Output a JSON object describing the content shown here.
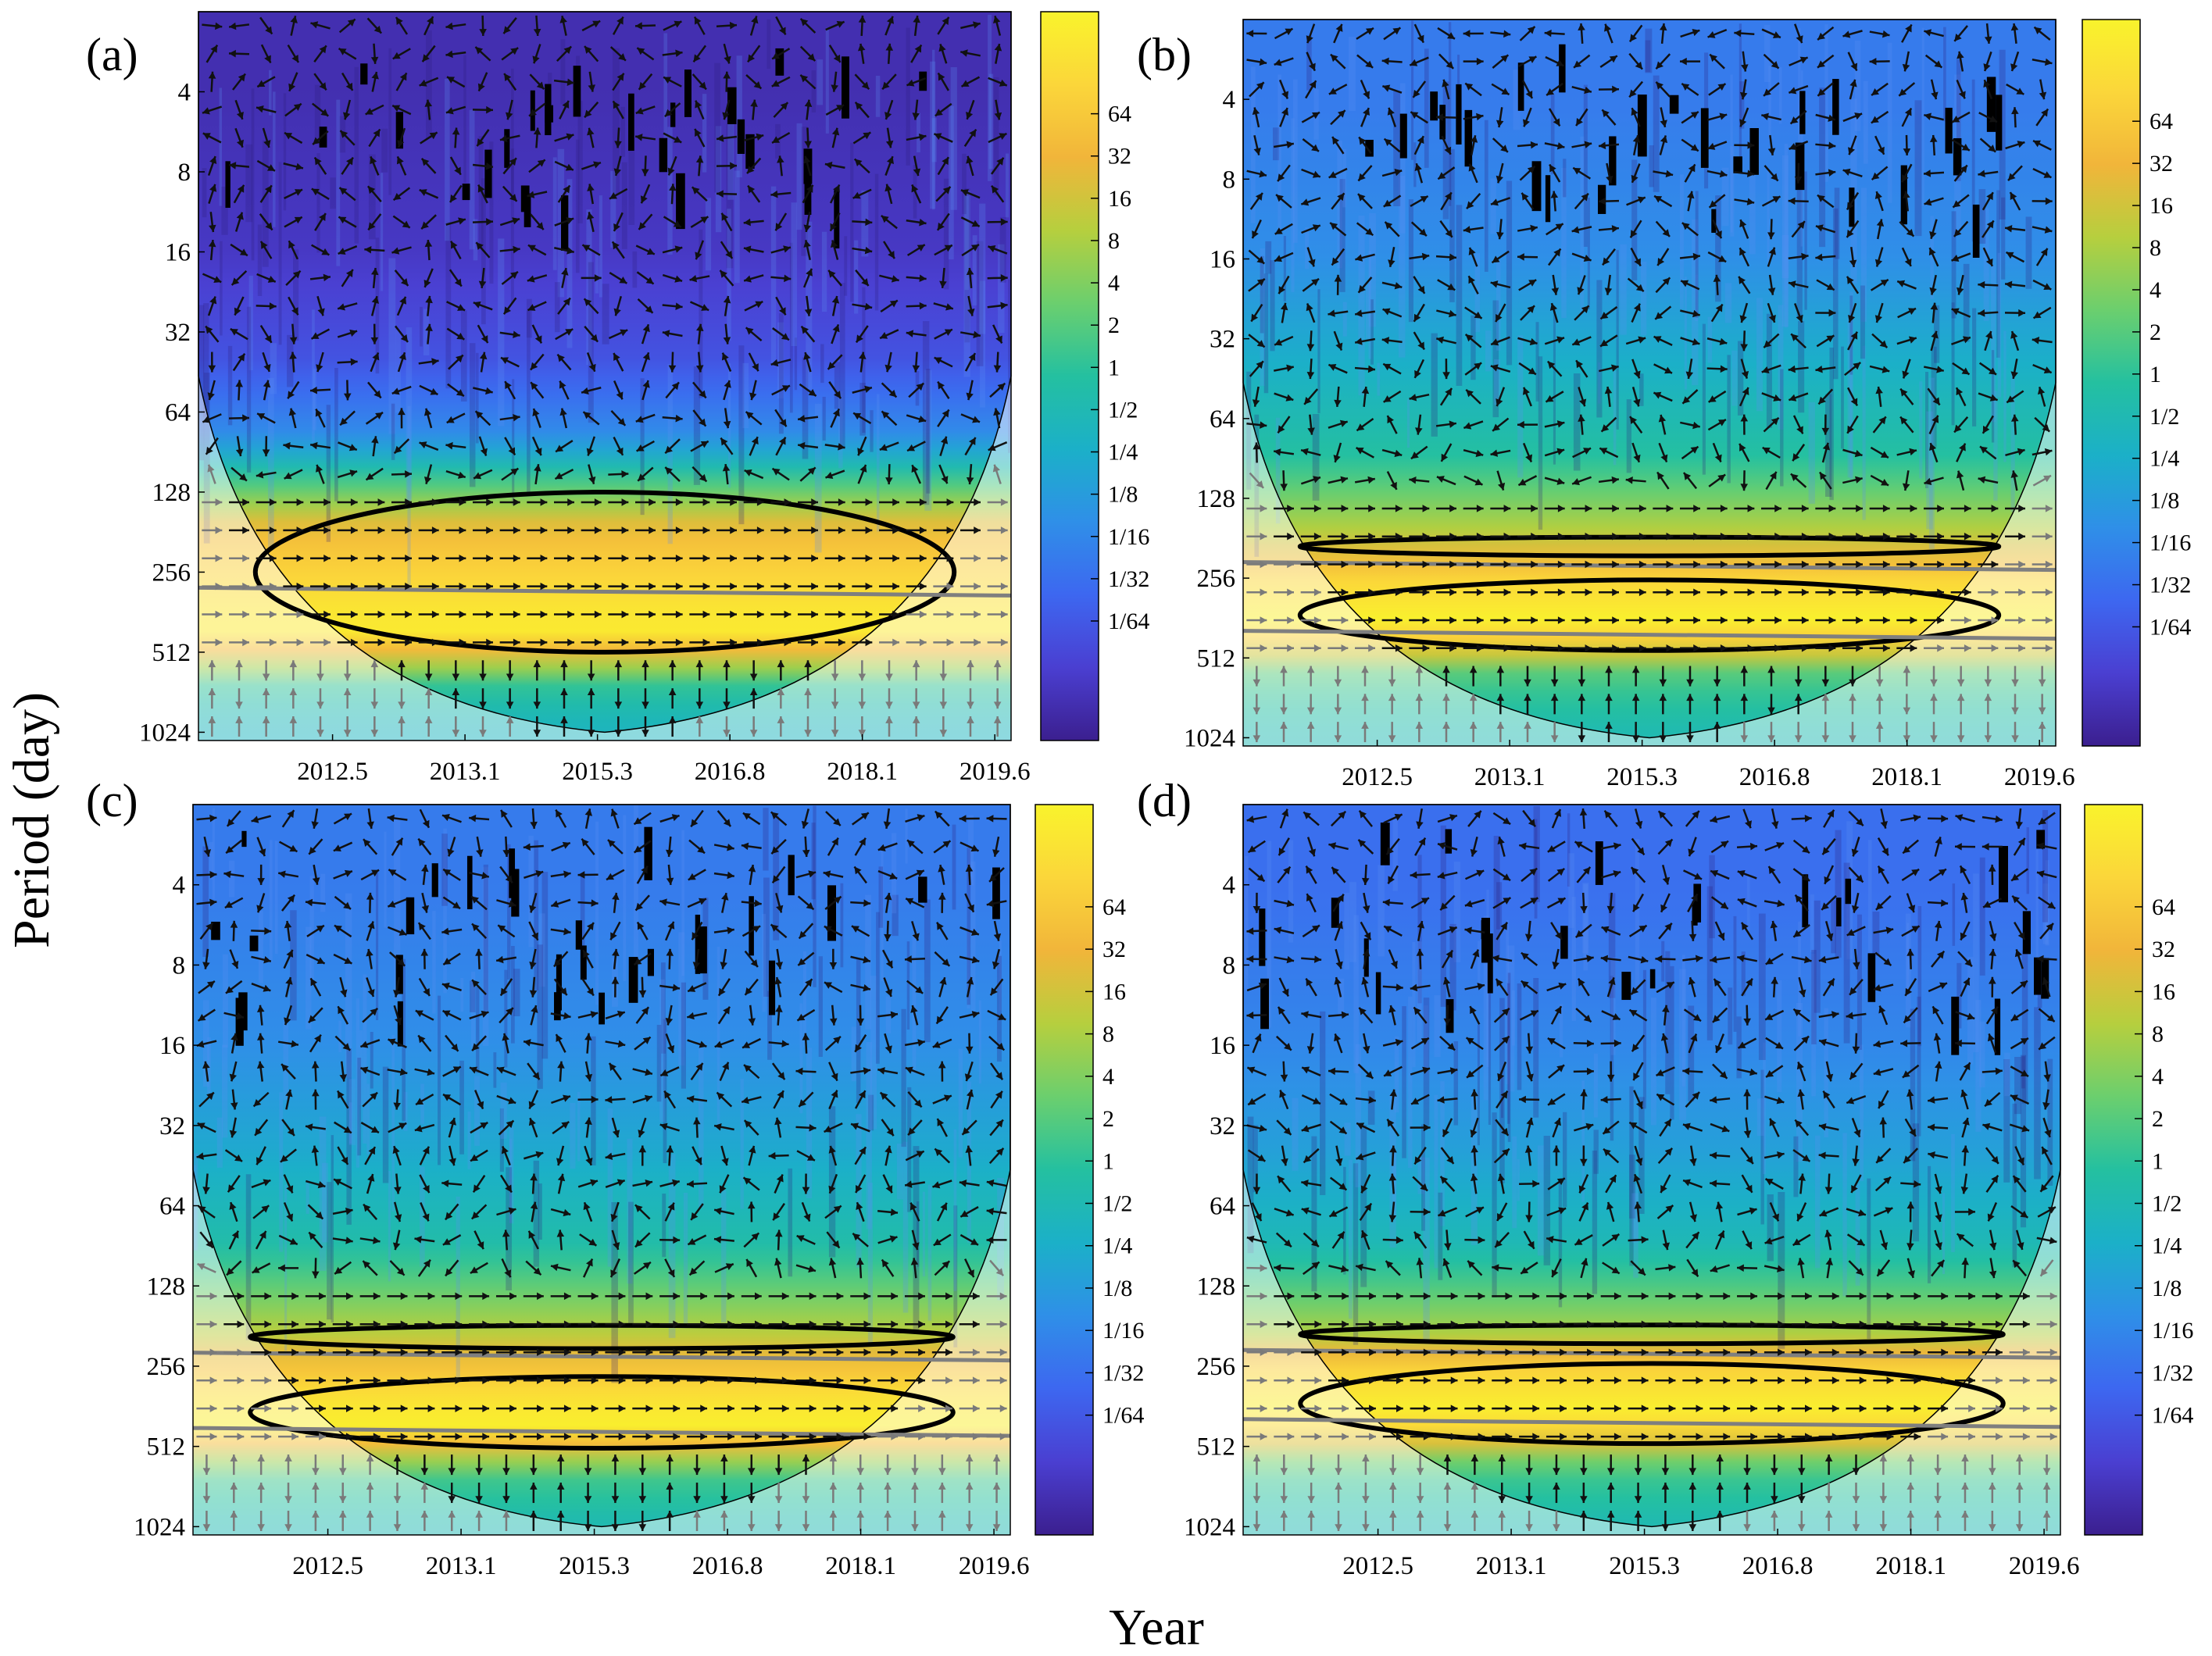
{
  "figure": {
    "ylabel": "Period (day)",
    "xlabel": "Year"
  },
  "colors": {
    "colormap": [
      "#3b1f8f",
      "#4a3fd1",
      "#3d67f0",
      "#2f8fe8",
      "#1bb0c8",
      "#24c0a0",
      "#6bcf6e",
      "#b6cf3e",
      "#f1b53a",
      "#fbd63a",
      "#f9f32c"
    ],
    "arrow": "#111111",
    "arrow_coi": "#7a7a7a",
    "contour": "#000000",
    "contour_coi": "#7f7f7f",
    "coi_fog": "#ffffff"
  },
  "chart_data": [
    {
      "type": "heatmap",
      "panel": "(a)",
      "title": "",
      "xlabel": "",
      "ylabel": "",
      "y_scale": "log2",
      "y_ticks": [
        4,
        8,
        16,
        32,
        64,
        128,
        256,
        512,
        1024
      ],
      "y_range": [
        2,
        1100
      ],
      "x_tick_labels": [
        "2012.5",
        "2013.1",
        "2015.3",
        "2016.8",
        "2018.1",
        "2019.6"
      ],
      "colorbar_ticks": [
        "64",
        "32",
        "16",
        "8",
        "4",
        "2",
        "1",
        "1/2",
        "1/4",
        "1/8",
        "1/16",
        "1/32",
        "1/64"
      ],
      "bands": [
        {
          "period": 4,
          "level": 0.05
        },
        {
          "period": 16,
          "level": 0.08
        },
        {
          "period": 40,
          "level": 0.15
        },
        {
          "period": 80,
          "level": 0.3
        },
        {
          "period": 180,
          "level": 0.82
        },
        {
          "period": 300,
          "level": 0.92
        },
        {
          "period": 420,
          "level": 0.98
        },
        {
          "period": 700,
          "level": 0.5
        },
        {
          "period": 1024,
          "level": 0.42
        }
      ],
      "significant_bands": [
        [
          128,
          512
        ]
      ]
    },
    {
      "type": "heatmap",
      "panel": "(b)",
      "title": "",
      "xlabel": "",
      "ylabel": "",
      "y_scale": "log2",
      "y_ticks": [
        4,
        8,
        16,
        32,
        64,
        128,
        256,
        512,
        1024
      ],
      "y_range": [
        2,
        1100
      ],
      "x_tick_labels": [
        "2012.5",
        "2013.1",
        "2015.3",
        "2016.8",
        "2018.1",
        "2019.6"
      ],
      "colorbar_ticks": [
        "64",
        "32",
        "16",
        "8",
        "4",
        "2",
        "1",
        "1/2",
        "1/4",
        "1/8",
        "1/16",
        "1/32",
        "1/64"
      ],
      "bands": [
        {
          "period": 4,
          "level": 0.25
        },
        {
          "period": 16,
          "level": 0.3
        },
        {
          "period": 40,
          "level": 0.4
        },
        {
          "period": 90,
          "level": 0.5
        },
        {
          "period": 180,
          "level": 0.72
        },
        {
          "period": 260,
          "level": 0.9
        },
        {
          "period": 380,
          "level": 1.0
        },
        {
          "period": 600,
          "level": 0.55
        },
        {
          "period": 1024,
          "level": 0.45
        }
      ],
      "significant_bands": [
        [
          180,
          210
        ],
        [
          260,
          480
        ]
      ]
    },
    {
      "type": "heatmap",
      "panel": "(c)",
      "title": "",
      "xlabel": "",
      "ylabel": "",
      "y_scale": "log2",
      "y_ticks": [
        4,
        8,
        16,
        32,
        64,
        128,
        256,
        512,
        1024
      ],
      "y_range": [
        2,
        1100
      ],
      "x_tick_labels": [
        "2012.5",
        "2013.1",
        "2015.3",
        "2016.8",
        "2018.1",
        "2019.6"
      ],
      "colorbar_ticks": [
        "64",
        "32",
        "16",
        "8",
        "4",
        "2",
        "1",
        "1/2",
        "1/4",
        "1/8",
        "1/16",
        "1/32",
        "1/64"
      ],
      "bands": [
        {
          "period": 4,
          "level": 0.25
        },
        {
          "period": 16,
          "level": 0.3
        },
        {
          "period": 40,
          "level": 0.38
        },
        {
          "period": 90,
          "level": 0.48
        },
        {
          "period": 190,
          "level": 0.7
        },
        {
          "period": 300,
          "level": 0.9
        },
        {
          "period": 420,
          "level": 1.0
        },
        {
          "period": 650,
          "level": 0.55
        },
        {
          "period": 1024,
          "level": 0.45
        }
      ],
      "significant_bands": [
        [
          180,
          220
        ],
        [
          280,
          520
        ]
      ]
    },
    {
      "type": "heatmap",
      "panel": "(d)",
      "title": "",
      "xlabel": "",
      "ylabel": "",
      "y_scale": "log2",
      "y_ticks": [
        4,
        8,
        16,
        32,
        64,
        128,
        256,
        512,
        1024
      ],
      "y_range": [
        2,
        1100
      ],
      "x_tick_labels": [
        "2012.5",
        "2013.1",
        "2015.3",
        "2016.8",
        "2018.1",
        "2019.6"
      ],
      "colorbar_ticks": [
        "64",
        "32",
        "16",
        "8",
        "4",
        "2",
        "1",
        "1/2",
        "1/4",
        "1/8",
        "1/16",
        "1/32",
        "1/64"
      ],
      "bands": [
        {
          "period": 4,
          "level": 0.22
        },
        {
          "period": 16,
          "level": 0.28
        },
        {
          "period": 40,
          "level": 0.35
        },
        {
          "period": 90,
          "level": 0.45
        },
        {
          "period": 190,
          "level": 0.68
        },
        {
          "period": 270,
          "level": 0.9
        },
        {
          "period": 390,
          "level": 1.0
        },
        {
          "period": 620,
          "level": 0.55
        },
        {
          "period": 1024,
          "level": 0.45
        }
      ],
      "significant_bands": [
        [
          180,
          210
        ],
        [
          250,
          500
        ]
      ]
    }
  ]
}
